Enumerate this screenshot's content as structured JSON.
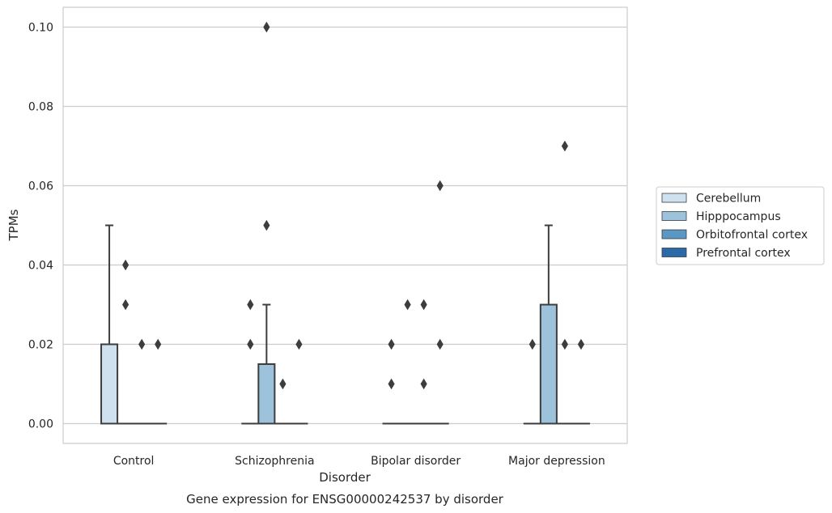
{
  "chart_data": {
    "type": "box",
    "title": "Gene expression for ENSG00000242537 by disorder",
    "xlabel": "Disorder",
    "ylabel": "TPMs",
    "categories": [
      "Control",
      "Schizophrenia",
      "Bipolar disorder",
      "Major depression"
    ],
    "ylim": [
      -0.005,
      0.105
    ],
    "yticks": [
      0.0,
      0.02,
      0.04,
      0.06,
      0.08,
      0.1
    ],
    "ytick_labels": [
      "0.00",
      "0.02",
      "0.04",
      "0.06",
      "0.08",
      "0.10"
    ],
    "grid": "horizontal",
    "legend_position": "right",
    "series": [
      {
        "name": "Cerebellum",
        "color": "#cfe0ef",
        "boxes": [
          {
            "category": "Control",
            "q1": 0.0,
            "median": 0.0,
            "q3": 0.02,
            "whisker_low": 0.0,
            "whisker_high": 0.05,
            "outliers": []
          },
          {
            "category": "Schizophrenia",
            "q1": 0.0,
            "median": 0.0,
            "q3": 0.0,
            "whisker_low": 0.0,
            "whisker_high": 0.0,
            "outliers": [
              0.02,
              0.03
            ]
          },
          {
            "category": "Bipolar disorder",
            "q1": 0.0,
            "median": 0.0,
            "q3": 0.0,
            "whisker_low": 0.0,
            "whisker_high": 0.0,
            "outliers": [
              0.01,
              0.02
            ]
          },
          {
            "category": "Major depression",
            "q1": 0.0,
            "median": 0.0,
            "q3": 0.0,
            "whisker_low": 0.0,
            "whisker_high": 0.0,
            "outliers": [
              0.02
            ]
          }
        ]
      },
      {
        "name": "Hipppocampus",
        "color": "#9dc3dc",
        "boxes": [
          {
            "category": "Control",
            "q1": 0.0,
            "median": 0.0,
            "q3": 0.0,
            "whisker_low": 0.0,
            "whisker_high": 0.0,
            "outliers": [
              0.03,
              0.04
            ]
          },
          {
            "category": "Schizophrenia",
            "q1": 0.0,
            "median": 0.0,
            "q3": 0.015,
            "whisker_low": 0.0,
            "whisker_high": 0.03,
            "outliers": [
              0.05,
              0.1
            ]
          },
          {
            "category": "Bipolar disorder",
            "q1": 0.0,
            "median": 0.0,
            "q3": 0.0,
            "whisker_low": 0.0,
            "whisker_high": 0.0,
            "outliers": [
              0.03
            ]
          },
          {
            "category": "Major depression",
            "q1": 0.0,
            "median": 0.0,
            "q3": 0.03,
            "whisker_low": 0.0,
            "whisker_high": 0.05,
            "outliers": []
          }
        ]
      },
      {
        "name": "Orbitofrontal cortex",
        "color": "#5a97c5",
        "boxes": [
          {
            "category": "Control",
            "q1": 0.0,
            "median": 0.0,
            "q3": 0.0,
            "whisker_low": 0.0,
            "whisker_high": 0.0,
            "outliers": [
              0.02
            ]
          },
          {
            "category": "Schizophrenia",
            "q1": 0.0,
            "median": 0.0,
            "q3": 0.0,
            "whisker_low": 0.0,
            "whisker_high": 0.0,
            "outliers": [
              0.01
            ]
          },
          {
            "category": "Bipolar disorder",
            "q1": 0.0,
            "median": 0.0,
            "q3": 0.0,
            "whisker_low": 0.0,
            "whisker_high": 0.0,
            "outliers": [
              0.01,
              0.03
            ]
          },
          {
            "category": "Major depression",
            "q1": 0.0,
            "median": 0.0,
            "q3": 0.0,
            "whisker_low": 0.0,
            "whisker_high": 0.0,
            "outliers": [
              0.02,
              0.07
            ]
          }
        ]
      },
      {
        "name": "Prefrontal cortex",
        "color": "#2a6aa8",
        "boxes": [
          {
            "category": "Control",
            "q1": 0.0,
            "median": 0.0,
            "q3": 0.0,
            "whisker_low": 0.0,
            "whisker_high": 0.0,
            "outliers": [
              0.02
            ]
          },
          {
            "category": "Schizophrenia",
            "q1": 0.0,
            "median": 0.0,
            "q3": 0.0,
            "whisker_low": 0.0,
            "whisker_high": 0.0,
            "outliers": [
              0.02
            ]
          },
          {
            "category": "Bipolar disorder",
            "q1": 0.0,
            "median": 0.0,
            "q3": 0.0,
            "whisker_low": 0.0,
            "whisker_high": 0.0,
            "outliers": [
              0.02,
              0.06
            ]
          },
          {
            "category": "Major depression",
            "q1": 0.0,
            "median": 0.0,
            "q3": 0.0,
            "whisker_low": 0.0,
            "whisker_high": 0.0,
            "outliers": [
              0.02
            ]
          }
        ]
      }
    ]
  }
}
